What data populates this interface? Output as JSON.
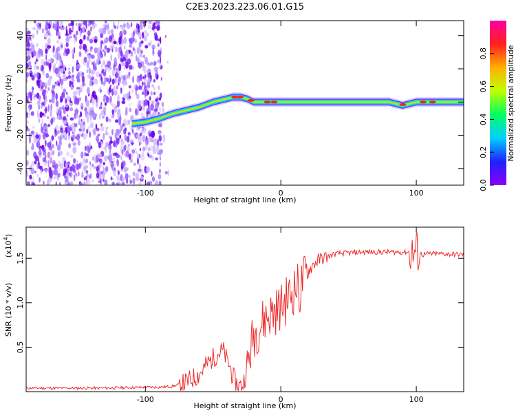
{
  "title": "C2E3.2023.223.06.01.G15",
  "chart_data": [
    {
      "type": "heatmap",
      "xlabel": "Height of straight line (km)",
      "ylabel": "Frequency (Hz)",
      "xlim": [
        -188,
        135
      ],
      "ylim": [
        -50,
        49
      ],
      "xticks": [
        -100,
        0,
        100
      ],
      "yticks": [
        -40,
        -20,
        0,
        20,
        40
      ],
      "colorbar": {
        "label": "Normalized spectral amplitude",
        "range": [
          0,
          1
        ],
        "ticks": [
          "0.0",
          "0.2",
          "0.4",
          "0.6",
          "0.8"
        ],
        "colors": [
          "#8a00ff",
          "#2020ff",
          "#00d0ff",
          "#00ff60",
          "#c0ff00",
          "#ffb000",
          "#ff2020",
          "#ff00a0"
        ]
      },
      "signal_track": {
        "x": [
          -110,
          -100,
          -90,
          -80,
          -70,
          -60,
          -50,
          -40,
          -35,
          -30,
          -25,
          -20,
          -10,
          0,
          20,
          40,
          60,
          80,
          85,
          90,
          95,
          100,
          110,
          120,
          135
        ],
        "y": [
          -13,
          -12,
          -10,
          -7,
          -5,
          -3,
          0,
          2,
          3,
          3,
          2,
          0,
          0,
          0,
          0,
          0,
          0,
          0,
          -1,
          -2,
          -1,
          0,
          0,
          0,
          0
        ]
      },
      "noise_region_x": [
        -188,
        -88
      ]
    },
    {
      "type": "line",
      "xlabel": "Height of straight line (km)",
      "ylabel": "SNR (10 * v/v)",
      "yscale_label": "(x10",
      "yscale_exp": "4",
      "xlim": [
        -188,
        135
      ],
      "ylim": [
        0,
        1.85
      ],
      "xticks": [
        -100,
        0,
        100
      ],
      "yticks": [
        "0.5",
        "1.0",
        "1.5"
      ],
      "ytick_values": [
        0.5,
        1.0,
        1.5
      ],
      "color": "#ee2a2a",
      "series": [
        {
          "x": [
            -188,
            -160,
            -130,
            -100,
            -90,
            -80,
            -75,
            -70,
            -65,
            -60,
            -55,
            -50,
            -45,
            -42,
            -40,
            -38,
            -35,
            -32,
            -30,
            -28,
            -25,
            -22,
            -20,
            -15,
            -10,
            -5,
            0,
            5,
            10,
            12,
            14,
            16,
            20,
            25,
            30,
            35,
            40,
            50,
            60,
            70,
            80,
            90,
            95,
            98,
            100,
            102,
            105,
            110,
            120,
            135
          ],
          "y": [
            0.04,
            0.04,
            0.04,
            0.05,
            0.05,
            0.06,
            0.08,
            0.1,
            0.15,
            0.2,
            0.3,
            0.38,
            0.45,
            0.45,
            0.35,
            0.3,
            0.15,
            0.08,
            0.06,
            0.08,
            0.25,
            0.5,
            0.65,
            0.75,
            0.85,
            0.9,
            0.95,
            1.05,
            1.15,
            1.2,
            1.1,
            1.25,
            1.35,
            1.45,
            1.5,
            1.52,
            1.55,
            1.56,
            1.57,
            1.57,
            1.57,
            1.57,
            1.57,
            1.55,
            1.58,
            1.56,
            1.54,
            1.55,
            1.55,
            1.54
          ]
        }
      ]
    }
  ]
}
